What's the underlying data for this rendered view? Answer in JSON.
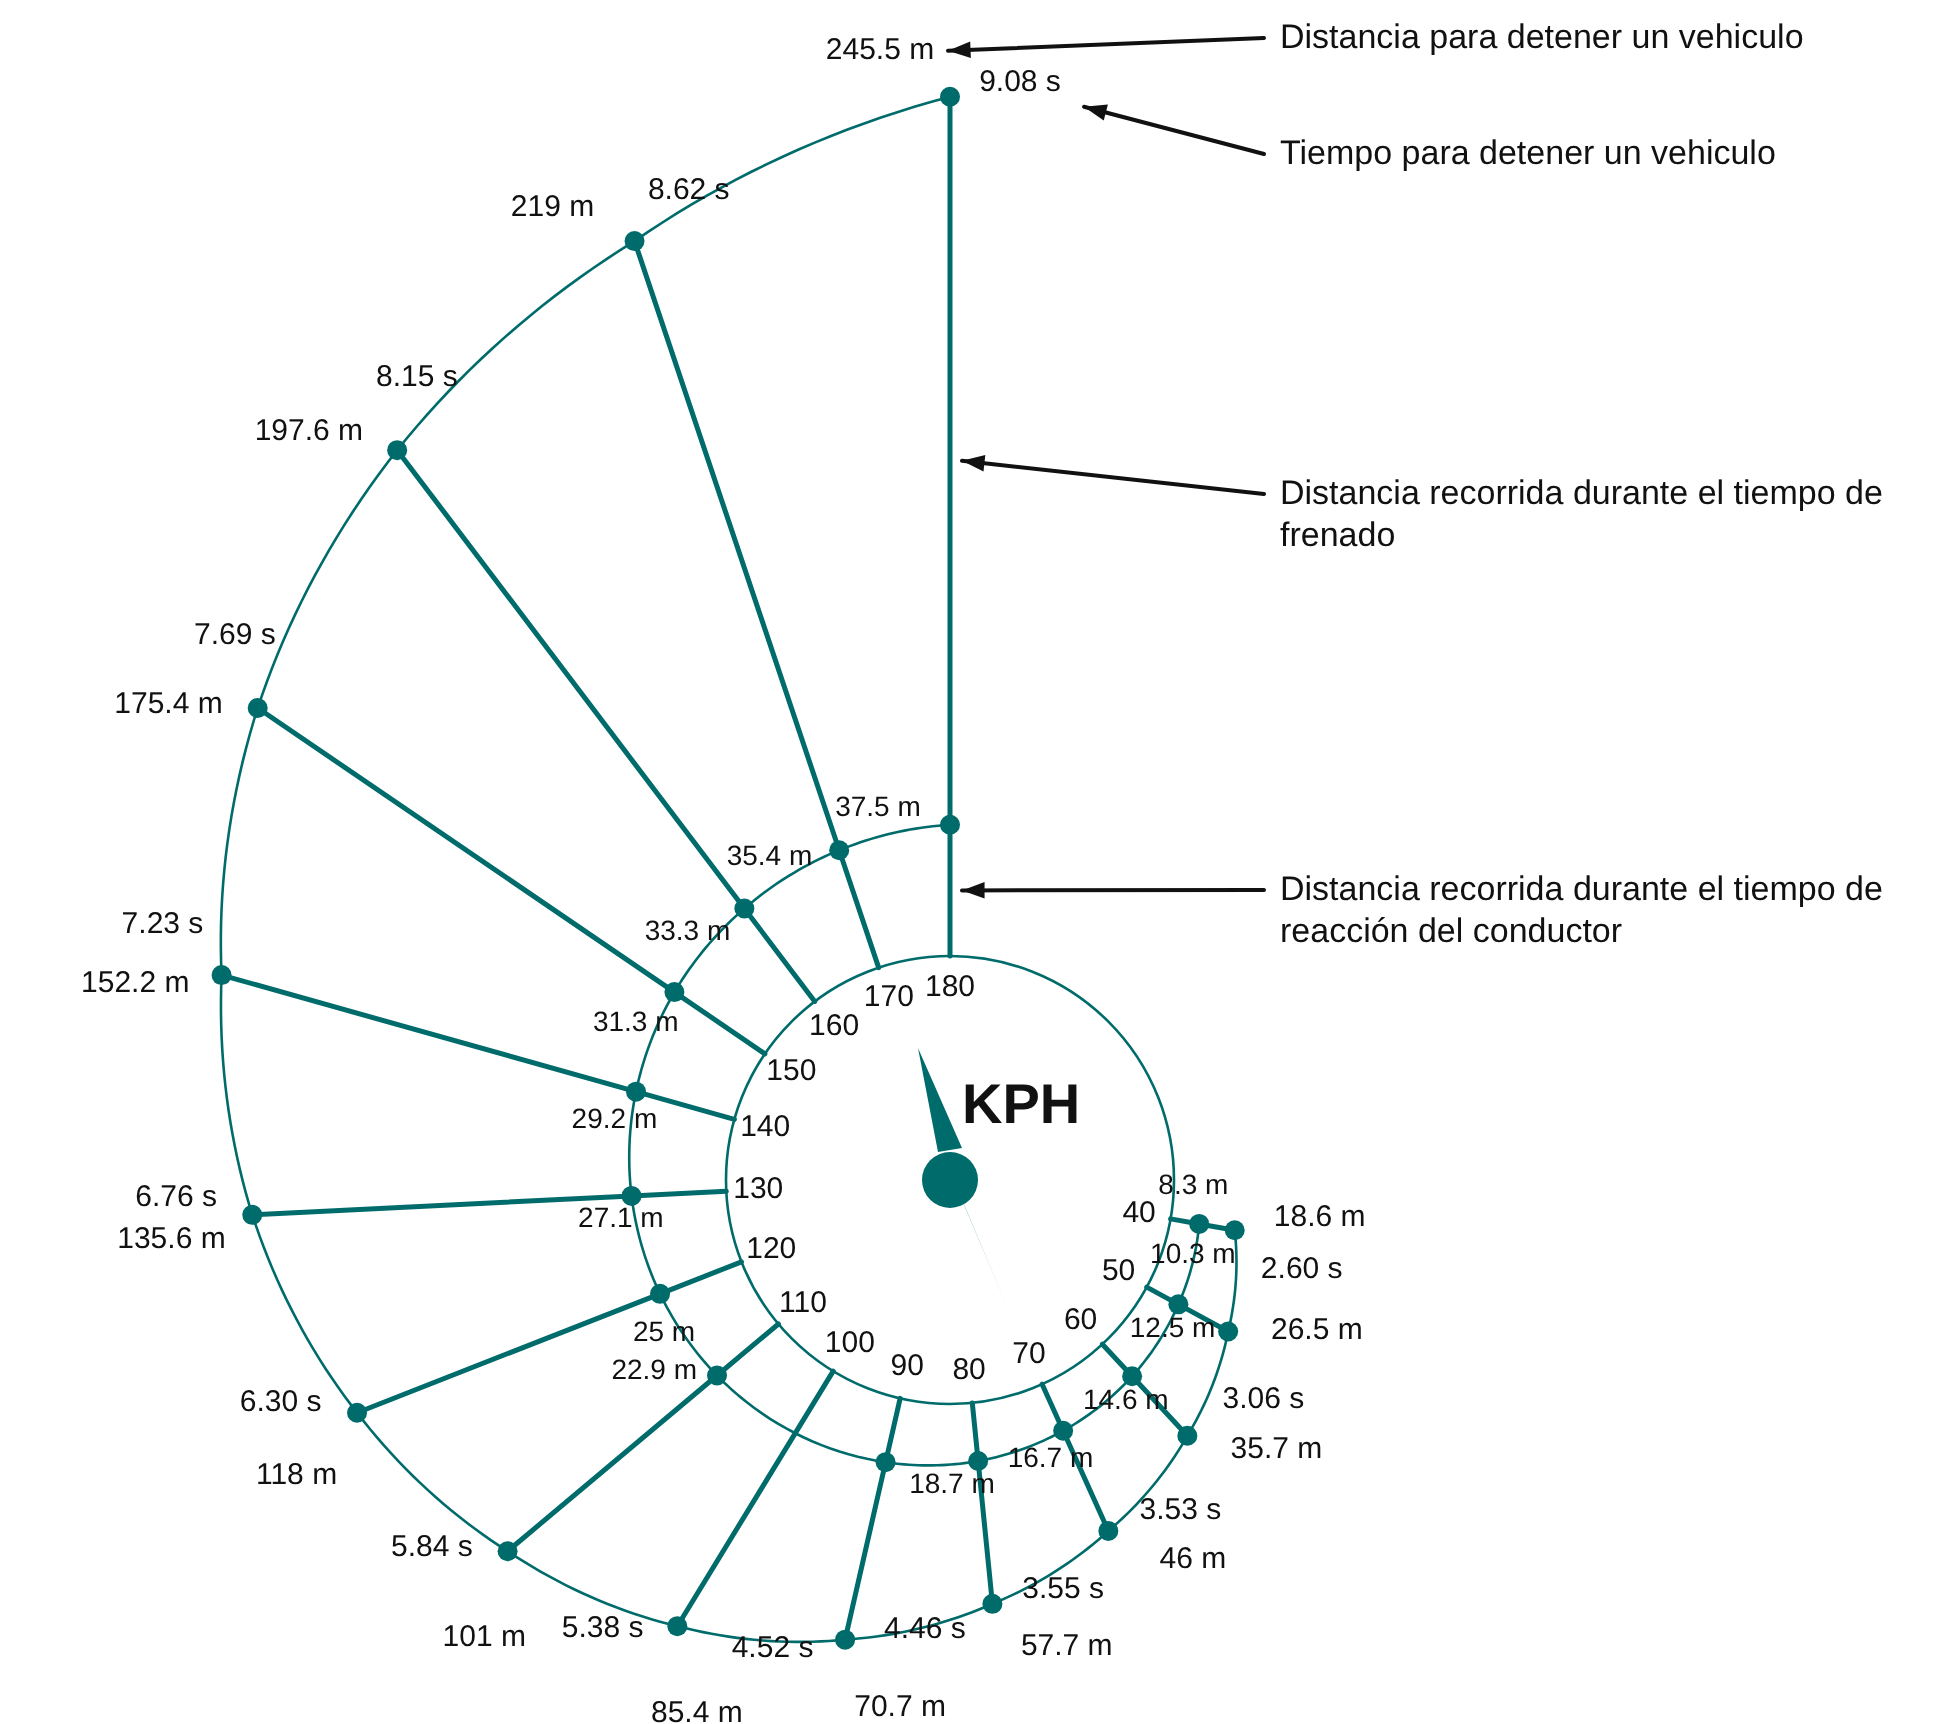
{
  "chart_data": {
    "type": "other",
    "xlabel": "KPH",
    "categories": [
      "40",
      "50",
      "60",
      "70",
      "80",
      "90",
      "100",
      "110",
      "120",
      "130",
      "140",
      "150",
      "160",
      "170",
      "180"
    ],
    "series": [
      {
        "color": "#006b6b",
        "values": [
          8.3,
          10.3,
          12.5,
          14.6,
          16.7,
          18.7,
          null,
          22.9,
          25,
          27.1,
          29.2,
          31.3,
          33.3,
          35.4,
          37.5
        ],
        "value_labels": [
          "8.3 m",
          "10.3 m",
          "12.5 m",
          "14.6 m",
          "16.7 m",
          "18.7 m",
          null,
          "22.9 m",
          "25 m",
          "27.1 m",
          "29.2 m",
          "31.3 m",
          "33.3 m",
          "35.4 m",
          "37.5 m"
        ]
      },
      {
        "color": "#006b6b",
        "values": [
          18.6,
          26.5,
          35.7,
          46,
          57.7,
          70.7,
          85.4,
          101,
          118,
          135.6,
          152.2,
          175.4,
          197.6,
          219,
          245.5
        ],
        "value_labels": [
          "18.6 m",
          "26.5 m",
          "35.7 m",
          "46 m",
          "57.7 m",
          "70.7 m",
          "85.4 m",
          "101 m",
          "118 m",
          "135.6 m",
          "152.2 m",
          "175.4 m",
          "197.6 m",
          "219 m",
          "245.5 m"
        ]
      },
      {
        "values": [
          2.6,
          3.06,
          3.53,
          3.55,
          4.46,
          4.52,
          5.38,
          5.84,
          6.3,
          6.76,
          7.23,
          7.69,
          8.15,
          8.62,
          9.08
        ],
        "value_labels": [
          "2.60 s",
          "3.06 s",
          "3.53 s",
          "3.55 s",
          "4.46 s",
          "4.52 s",
          "5.38 s",
          "5.84 s",
          "6.30 s",
          "6.76 s",
          "7.23 s",
          "7.69 s",
          "8.15 s",
          "8.62 s",
          "9.08 s"
        ]
      }
    ],
    "annotations": [
      "Distancia para detener un vehiculo",
      "Tiempo para detener un vehiculo",
      "Distancia recorrida durante el tiempo de frenado",
      "Distancia recorrida durante el tiempo de reacción del conductor"
    ]
  }
}
